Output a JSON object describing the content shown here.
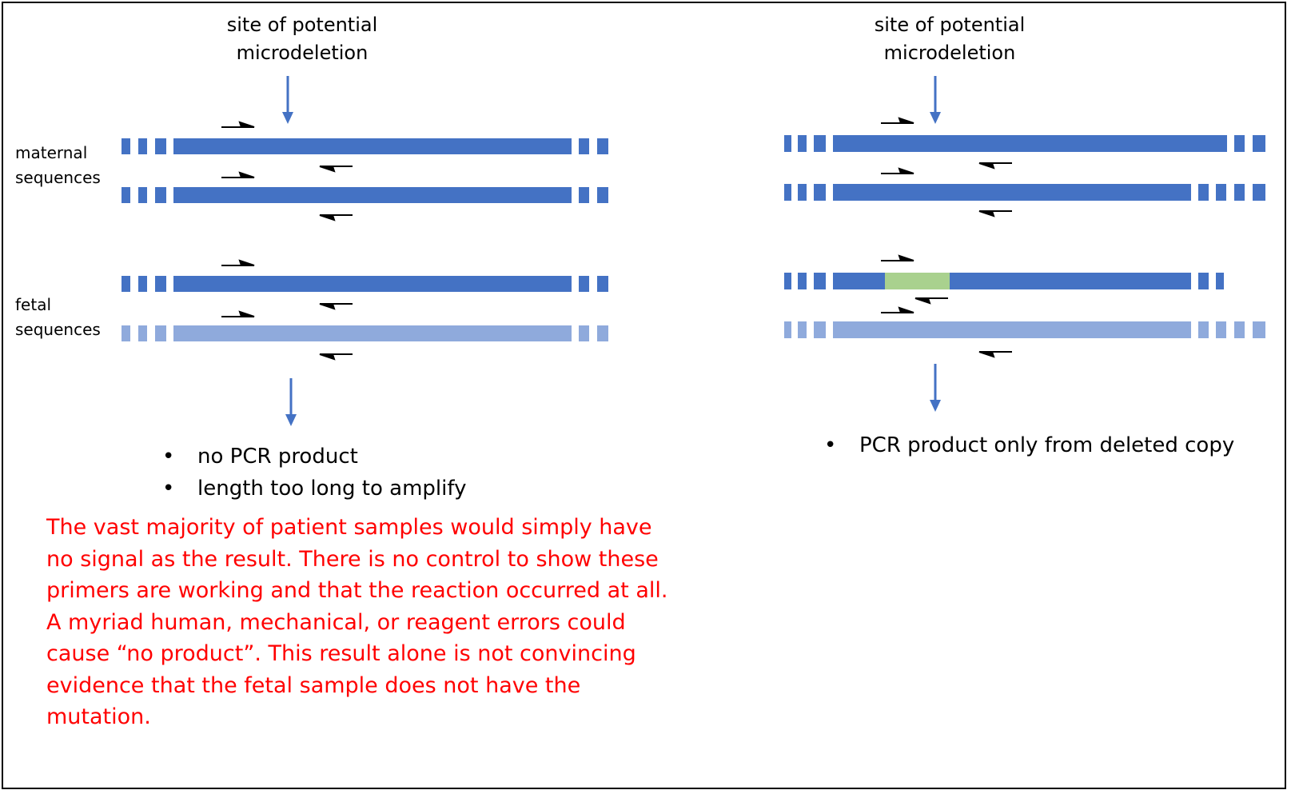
{
  "left_panel": {
    "site_label": [
      "site of potential",
      "microdeletion"
    ],
    "maternal_label": [
      "maternal",
      "sequences"
    ],
    "fetal_label": [
      "fetal",
      "sequences"
    ],
    "results": [
      "no PCR product",
      "length too long to amplify"
    ],
    "note": [
      "The vast majority of patient samples would simply have no signal as the result. There is no control to show these primers are working and that the reaction occurred at all.",
      "A myriad human, mechanical, or reagent errors could cause “no product”. This result alone is not convincing evidence that the fetal sample does not have the mutation."
    ]
  },
  "right_panel": {
    "site_label": [
      "site of potential",
      "microdeletion"
    ],
    "results": [
      "PCR product only from deleted copy"
    ]
  },
  "colors": {
    "sequence": "#4472c4",
    "fetal_sequence": "#8faadc",
    "deletion_region": "#a9d18e",
    "arrow": "#4472c4",
    "note_text": "#ff0000",
    "primer": "#000000"
  }
}
